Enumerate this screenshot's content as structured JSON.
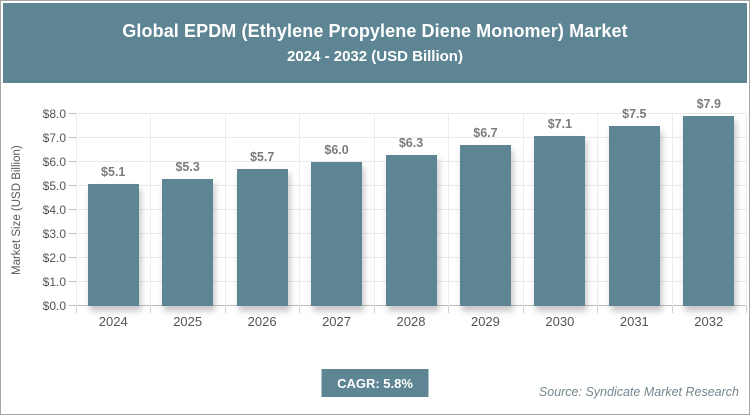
{
  "header": {
    "title_line1": "Global EPDM (Ethylene Propylene Diene Monomer) Market",
    "title_line2": "2024 - 2032 (USD Billion)",
    "background": "#5e8594",
    "text_color": "#ffffff"
  },
  "chart_data": {
    "type": "bar",
    "title": "Global EPDM (Ethylene Propylene Diene Monomer) Market 2024 - 2032 (USD Billion)",
    "categories": [
      "2024",
      "2025",
      "2026",
      "2027",
      "2028",
      "2029",
      "2030",
      "2031",
      "2032"
    ],
    "values": [
      5.1,
      5.3,
      5.7,
      6.0,
      6.3,
      6.7,
      7.1,
      7.5,
      7.9
    ],
    "data_labels": [
      "$5.1",
      "$5.3",
      "$5.7",
      "$6.0",
      "$6.3",
      "$6.7",
      "$7.1",
      "$7.5",
      "$7.9"
    ],
    "xlabel": "",
    "ylabel": "Market Size (USD Billion)",
    "ylim": [
      0,
      8
    ],
    "ytick_step": 1,
    "ytick_labels": [
      "$0.0",
      "$1.0",
      "$2.0",
      "$3.0",
      "$4.0",
      "$5.0",
      "$6.0",
      "$7.0",
      "$8.0"
    ],
    "grid": true,
    "legend": "none",
    "bar_color": "#5e8594",
    "value_label_color": "#7c7c7c"
  },
  "footer": {
    "cagr_label": "CAGR: 5.8%",
    "badge_color": "#5e8594",
    "source": "Source: Syndicate Market Research"
  }
}
